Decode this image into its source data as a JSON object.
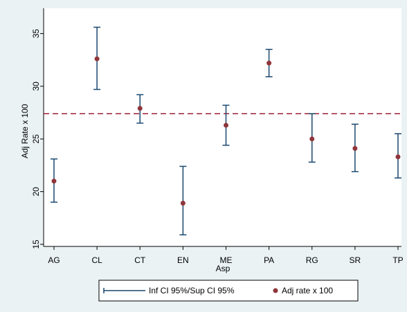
{
  "chart_data": {
    "type": "scatter",
    "title": "",
    "xlabel": "Asp",
    "ylabel": "Adj Rate x 100",
    "categories": [
      "AG",
      "CL",
      "CT",
      "EN",
      "ME",
      "PA",
      "RG",
      "SR",
      "TP"
    ],
    "ylim": [
      14.8,
      37.4
    ],
    "yticks": [
      15,
      20,
      25,
      30,
      35
    ],
    "grid": false,
    "legend_position": "bottom",
    "reference_line": {
      "y": 27.4,
      "color": "#9b1b30",
      "style": "dashed"
    },
    "series": [
      {
        "name": "Inf CI 95%/Sup CI 95%",
        "kind": "range",
        "color": "#1a476f",
        "lower": [
          19.0,
          29.7,
          26.5,
          15.9,
          24.4,
          30.9,
          22.8,
          21.9,
          21.3
        ],
        "upper": [
          23.1,
          35.6,
          29.2,
          22.4,
          28.2,
          33.5,
          27.4,
          26.4,
          25.5
        ]
      },
      {
        "name": "Adj rate x 100",
        "kind": "point",
        "color": "#90353b",
        "values": [
          21.0,
          32.6,
          27.9,
          18.9,
          26.3,
          32.2,
          25.0,
          24.1,
          23.3
        ]
      }
    ]
  }
}
